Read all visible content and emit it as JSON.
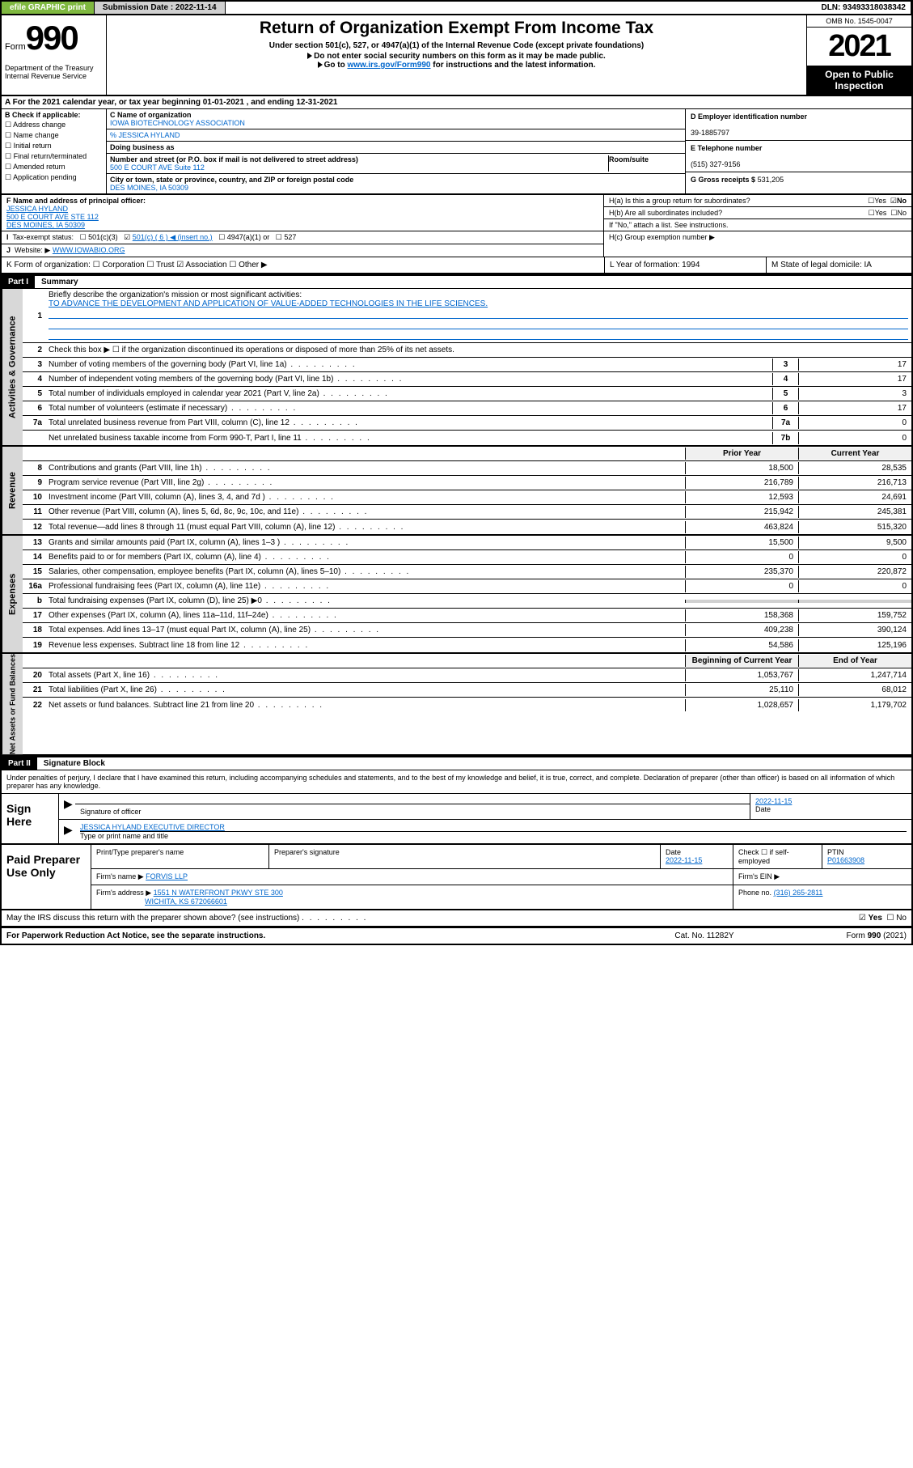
{
  "topbar": {
    "efile": "efile GRAPHIC print",
    "subdate_lbl": "Submission Date : 2022-11-14",
    "dln": "DLN: 93493318038342"
  },
  "header": {
    "form_word": "Form",
    "form_num": "990",
    "dept": "Department of the Treasury Internal Revenue Service",
    "title": "Return of Organization Exempt From Income Tax",
    "sub": "Under section 501(c), 527, or 4947(a)(1) of the Internal Revenue Code (except private foundations)",
    "note1": "Do not enter social security numbers on this form as it may be made public.",
    "note2_pre": "Go to ",
    "note2_link": "www.irs.gov/Form990",
    "note2_post": " for instructions and the latest information.",
    "omb": "OMB No. 1545-0047",
    "year": "2021",
    "inspect": "Open to Public Inspection"
  },
  "rowA": "For the 2021 calendar year, or tax year beginning 01-01-2021   , and ending 12-31-2021",
  "B": {
    "lbl": "B Check if applicable:",
    "opts": [
      "Address change",
      "Name change",
      "Initial return",
      "Final return/terminated",
      "Amended return",
      "Application pending"
    ]
  },
  "C": {
    "name_lbl": "C Name of organization",
    "name": "IOWA BIOTECHNOLOGY ASSOCIATION",
    "care_lbl": "% JESSICA HYLAND",
    "dba_lbl": "Doing business as",
    "street_lbl": "Number and street (or P.O. box if mail is not delivered to street address)",
    "room_lbl": "Room/suite",
    "street": "500 E COURT AVE Suite 112",
    "city_lbl": "City or town, state or province, country, and ZIP or foreign postal code",
    "city": "DES MOINES, IA  50309"
  },
  "D": {
    "lbl": "D Employer identification number",
    "val": "39-1885797"
  },
  "E": {
    "lbl": "E Telephone number",
    "val": "(515) 327-9156"
  },
  "G": {
    "lbl": "G Gross receipts $",
    "val": "531,205"
  },
  "F": {
    "lbl": "F Name and address of principal officer:",
    "name": "JESSICA HYLAND",
    "addr1": "500 E COURT AVE STE 112",
    "addr2": "DES MOINES, IA  50309"
  },
  "H": {
    "a": "H(a)  Is this a group return for subordinates?",
    "b": "H(b)  Are all subordinates included?",
    "note": "If \"No,\" attach a list. See instructions.",
    "c": "H(c)  Group exemption number ▶"
  },
  "I": "Tax-exempt status:",
  "I_opts": {
    "a": "501(c)(3)",
    "b": "501(c) ( 6 ) ◀ (insert no.)",
    "c": "4947(a)(1) or",
    "d": "527"
  },
  "J": {
    "lbl": "Website: ▶",
    "val": "WWW.IOWABIO.ORG"
  },
  "K": "K Form of organization:   ☐ Corporation  ☐ Trust  ☑ Association  ☐ Other ▶",
  "L": "L Year of formation: 1994",
  "M": "M State of legal domicile: IA",
  "part1": {
    "hdr": "Part I",
    "title": "Summary"
  },
  "summary": {
    "q1": "Briefly describe the organization's mission or most significant activities:",
    "mission": "TO ADVANCE THE DEVELOPMENT AND APPLICATION OF VALUE-ADDED TECHNOLOGIES IN THE LIFE SCIENCES.",
    "q2": "Check this box ▶ ☐  if the organization discontinued its operations or disposed of more than 25% of its net assets.",
    "rows_gov": [
      {
        "n": "3",
        "t": "Number of voting members of the governing body (Part VI, line 1a)",
        "c": "3",
        "v": "17"
      },
      {
        "n": "4",
        "t": "Number of independent voting members of the governing body (Part VI, line 1b)",
        "c": "4",
        "v": "17"
      },
      {
        "n": "5",
        "t": "Total number of individuals employed in calendar year 2021 (Part V, line 2a)",
        "c": "5",
        "v": "3"
      },
      {
        "n": "6",
        "t": "Total number of volunteers (estimate if necessary)",
        "c": "6",
        "v": "17"
      },
      {
        "n": "7a",
        "t": "Total unrelated business revenue from Part VIII, column (C), line 12",
        "c": "7a",
        "v": "0"
      },
      {
        "n": "",
        "t": "Net unrelated business taxable income from Form 990-T, Part I, line 11",
        "c": "7b",
        "v": "0"
      }
    ],
    "col_prior": "Prior Year",
    "col_curr": "Current Year",
    "col_beg": "Beginning of Current Year",
    "col_end": "End of Year",
    "rev": [
      {
        "n": "8",
        "t": "Contributions and grants (Part VIII, line 1h)",
        "p": "18,500",
        "c": "28,535"
      },
      {
        "n": "9",
        "t": "Program service revenue (Part VIII, line 2g)",
        "p": "216,789",
        "c": "216,713"
      },
      {
        "n": "10",
        "t": "Investment income (Part VIII, column (A), lines 3, 4, and 7d )",
        "p": "12,593",
        "c": "24,691"
      },
      {
        "n": "11",
        "t": "Other revenue (Part VIII, column (A), lines 5, 6d, 8c, 9c, 10c, and 11e)",
        "p": "215,942",
        "c": "245,381"
      },
      {
        "n": "12",
        "t": "Total revenue—add lines 8 through 11 (must equal Part VIII, column (A), line 12)",
        "p": "463,824",
        "c": "515,320"
      }
    ],
    "exp": [
      {
        "n": "13",
        "t": "Grants and similar amounts paid (Part IX, column (A), lines 1–3 )",
        "p": "15,500",
        "c": "9,500"
      },
      {
        "n": "14",
        "t": "Benefits paid to or for members (Part IX, column (A), line 4)",
        "p": "0",
        "c": "0"
      },
      {
        "n": "15",
        "t": "Salaries, other compensation, employee benefits (Part IX, column (A), lines 5–10)",
        "p": "235,370",
        "c": "220,872"
      },
      {
        "n": "16a",
        "t": "Professional fundraising fees (Part IX, column (A), line 11e)",
        "p": "0",
        "c": "0"
      },
      {
        "n": "b",
        "t": "Total fundraising expenses (Part IX, column (D), line 25) ▶0",
        "p": "",
        "c": "",
        "gray": true
      },
      {
        "n": "17",
        "t": "Other expenses (Part IX, column (A), lines 11a–11d, 11f–24e)",
        "p": "158,368",
        "c": "159,752"
      },
      {
        "n": "18",
        "t": "Total expenses. Add lines 13–17 (must equal Part IX, column (A), line 25)",
        "p": "409,238",
        "c": "390,124"
      },
      {
        "n": "19",
        "t": "Revenue less expenses. Subtract line 18 from line 12",
        "p": "54,586",
        "c": "125,196"
      }
    ],
    "net": [
      {
        "n": "20",
        "t": "Total assets (Part X, line 16)",
        "p": "1,053,767",
        "c": "1,247,714"
      },
      {
        "n": "21",
        "t": "Total liabilities (Part X, line 26)",
        "p": "25,110",
        "c": "68,012"
      },
      {
        "n": "22",
        "t": "Net assets or fund balances. Subtract line 21 from line 20",
        "p": "1,028,657",
        "c": "1,179,702"
      }
    ]
  },
  "sidelabels": {
    "gov": "Activities & Governance",
    "rev": "Revenue",
    "exp": "Expenses",
    "net": "Net Assets or Fund Balances"
  },
  "part2": {
    "hdr": "Part II",
    "title": "Signature Block"
  },
  "sig": {
    "note": "Under penalties of perjury, I declare that I have examined this return, including accompanying schedules and statements, and to the best of my knowledge and belief, it is true, correct, and complete. Declaration of preparer (other than officer) is based on all information of which preparer has any knowledge.",
    "sign_here": "Sign Here",
    "sig_of": "Signature of officer",
    "date": "2022-11-15",
    "date_lbl": "Date",
    "name": "JESSICA HYLAND EXECUTIVE DIRECTOR",
    "name_lbl": "Type or print name and title"
  },
  "prep": {
    "lbl": "Paid Preparer Use Only",
    "h1": "Print/Type preparer's name",
    "h2": "Preparer's signature",
    "h3_lbl": "Date",
    "h3": "2022-11-15",
    "h4": "Check ☐ if self-employed",
    "h5_lbl": "PTIN",
    "h5": "P01663908",
    "firm_lbl": "Firm's name    ▶",
    "firm": "FORVIS LLP",
    "ein_lbl": "Firm's EIN ▶",
    "addr_lbl": "Firm's address ▶",
    "addr1": "1551 N WATERFRONT PKWY STE 300",
    "addr2": "WICHITA, KS  672066601",
    "phone_lbl": "Phone no.",
    "phone": "(316) 265-2811"
  },
  "discuss": "May the IRS discuss this return with the preparer shown above? (see instructions)",
  "footer": {
    "pra": "For Paperwork Reduction Act Notice, see the separate instructions.",
    "cat": "Cat. No. 11282Y",
    "form": "Form 990 (2021)"
  }
}
